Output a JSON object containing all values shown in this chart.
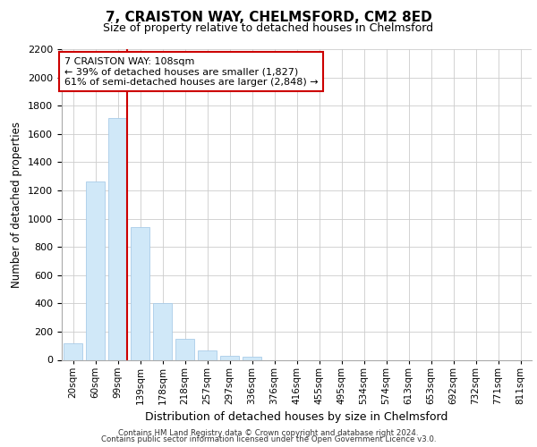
{
  "title1": "7, CRAISTON WAY, CHELMSFORD, CM2 8ED",
  "title2": "Size of property relative to detached houses in Chelmsford",
  "xlabel": "Distribution of detached houses by size in Chelmsford",
  "ylabel": "Number of detached properties",
  "bin_labels": [
    "20sqm",
    "60sqm",
    "99sqm",
    "139sqm",
    "178sqm",
    "218sqm",
    "257sqm",
    "297sqm",
    "336sqm",
    "376sqm",
    "416sqm",
    "455sqm",
    "495sqm",
    "534sqm",
    "574sqm",
    "613sqm",
    "653sqm",
    "692sqm",
    "732sqm",
    "771sqm",
    "811sqm"
  ],
  "bar_values": [
    120,
    1260,
    1710,
    940,
    400,
    150,
    65,
    30,
    20,
    0,
    0,
    0,
    0,
    0,
    0,
    0,
    0,
    0,
    0,
    0,
    0
  ],
  "bar_color": "#d0e8f8",
  "bar_edge_color": "#aacce8",
  "grid_color": "#cccccc",
  "vline_color": "#cc0000",
  "annotation_text": "7 CRAISTON WAY: 108sqm\n← 39% of detached houses are smaller (1,827)\n61% of semi-detached houses are larger (2,848) →",
  "annotation_box_facecolor": "white",
  "annotation_box_edgecolor": "#cc0000",
  "ylim": [
    0,
    2200
  ],
  "yticks": [
    0,
    200,
    400,
    600,
    800,
    1000,
    1200,
    1400,
    1600,
    1800,
    2000,
    2200
  ],
  "footer1": "Contains HM Land Registry data © Crown copyright and database right 2024.",
  "footer2": "Contains public sector information licensed under the Open Government Licence v3.0.",
  "title1_fontsize": 11,
  "title2_fontsize": 9,
  "ylabel_fontsize": 8.5,
  "xlabel_fontsize": 9,
  "tick_fontsize": 8,
  "xtick_fontsize": 7.5,
  "annotation_fontsize": 8,
  "footer_fontsize": 6.2
}
